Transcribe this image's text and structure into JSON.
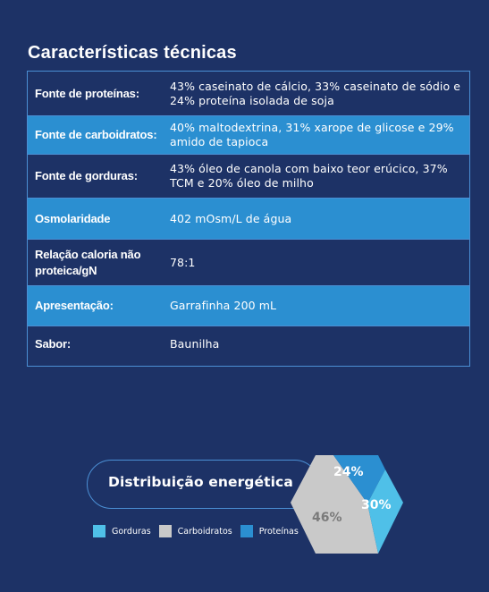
{
  "title": "Características técnicas",
  "rows": [
    {
      "label": "Fonte de proteínas:",
      "value": "43% caseinato de cálcio, 33% caseinato de sódio e 24% proteína isolada de soja"
    },
    {
      "label": "Fonte de carboidratos:",
      "value": "40% maltodextrina, 31% xarope de glicose e 29% amido de tapioca"
    },
    {
      "label": "Fonte de gorduras:",
      "value": "43% óleo de canola com baixo teor erúcico, 37% TCM e 20% óleo de milho"
    },
    {
      "label": "Osmolaridade",
      "value": "402 mOsm/L de água"
    },
    {
      "label": "Relação caloria não proteica/gN",
      "value": "78:1"
    },
    {
      "label": "Apresentação:",
      "value": "Garrafinha 200 mL"
    },
    {
      "label": "Sabor:",
      "value": "Baunilha"
    }
  ],
  "energy": {
    "title": "Distribuição energética",
    "legend": [
      {
        "label": "Gorduras",
        "color": "#4fc0e8"
      },
      {
        "label": "Carboidratos",
        "color": "#c9c9c9"
      },
      {
        "label": "Proteínas",
        "color": "#2b8fd1"
      }
    ],
    "segments": [
      {
        "name": "Proteínas",
        "percent": 24,
        "label": "24%",
        "color": "#2b8fd1"
      },
      {
        "name": "Gorduras",
        "percent": 30,
        "label": "30%",
        "color": "#4fc0e8"
      },
      {
        "name": "Carboidratos",
        "percent": 46,
        "label": "46%",
        "color": "#c9c9c9"
      }
    ]
  },
  "colors": {
    "background": "#1d3266",
    "accent": "#2b8fd1",
    "border": "#4b8fd4"
  }
}
